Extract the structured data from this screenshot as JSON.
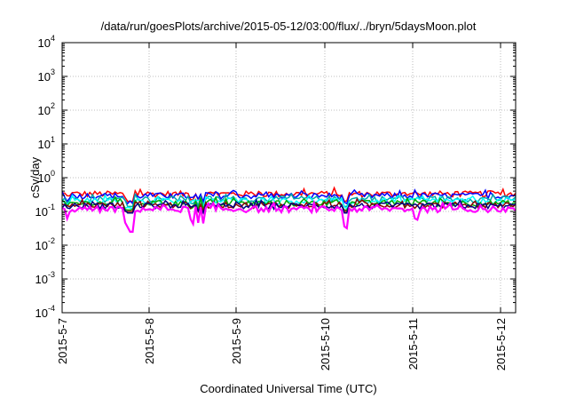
{
  "chart_data": {
    "type": "line",
    "title": "/data/run/goesPlots/archive/2015-05-12/03:00/flux/../bryn/5daysMoon.plot",
    "xlabel": "Coordinated Universal Time (UTC)",
    "ylabel": "cSv/day",
    "x_ticks": [
      "2015-5-7",
      "2015-5-8",
      "2015-5-9",
      "2015-5-10",
      "2015-5-11",
      "2015-5-12"
    ],
    "y_scale": "log",
    "ylim": [
      0.0001,
      10000
    ],
    "y_ticks": [
      {
        "base": "10",
        "exp": "4"
      },
      {
        "base": "10",
        "exp": "3"
      },
      {
        "base": "10",
        "exp": "2"
      },
      {
        "base": "10",
        "exp": "1"
      },
      {
        "base": "10",
        "exp": "0"
      },
      {
        "base": "10",
        "exp": "-1"
      },
      {
        "base": "10",
        "exp": "-2"
      },
      {
        "base": "10",
        "exp": "-3"
      },
      {
        "base": "10",
        "exp": "-4"
      }
    ],
    "grid": true,
    "series": [
      {
        "color": "#ff0000",
        "level": 0.34,
        "min": 0.2
      },
      {
        "color": "#0000ff",
        "level": 0.3,
        "min": 0.17
      },
      {
        "color": "#00aaaa",
        "level": 0.24,
        "min": 0.14
      },
      {
        "color": "#00ffff",
        "level": 0.21,
        "min": 0.12
      },
      {
        "color": "#00aa00",
        "level": 0.18,
        "min": 0.11
      },
      {
        "color": "#8b0000",
        "level": 0.16,
        "min": 0.1
      },
      {
        "color": "#000080",
        "level": 0.15,
        "min": 0.09
      },
      {
        "color": "#ff00ff",
        "level": 0.12,
        "min": 0.025
      }
    ]
  }
}
